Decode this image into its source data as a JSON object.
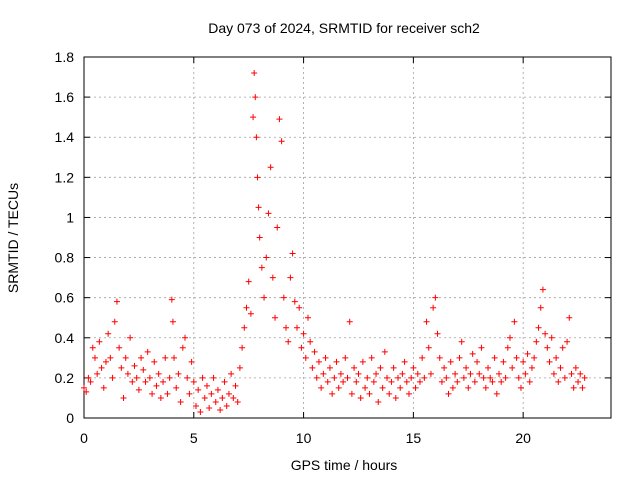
{
  "chart_data": {
    "type": "scatter",
    "title": "Day 073 of 2024, SRMTID for receiver sch2",
    "xlabel": "GPS time / hours",
    "ylabel": "SRMTID / TECUs",
    "xlim": [
      0,
      24
    ],
    "ylim": [
      0,
      1.8
    ],
    "xticks": [
      0,
      5,
      10,
      15,
      20
    ],
    "xtick_labels": [
      "0",
      "5",
      "10",
      "15",
      "20"
    ],
    "yticks": [
      0,
      0.2,
      0.4,
      0.6,
      0.8,
      1.0,
      1.2,
      1.4,
      1.6,
      1.8
    ],
    "ytick_labels": [
      "0",
      "0.2",
      "0.4",
      "0.6",
      "0.8",
      "1",
      "1.2",
      "1.4",
      "1.6",
      "1.8"
    ],
    "grid": true,
    "marker": "plus",
    "color": "#ff0000",
    "series": [
      {
        "name": "SRMTID",
        "points": [
          [
            0.0,
            0.15
          ],
          [
            0.1,
            0.13
          ],
          [
            0.2,
            0.2
          ],
          [
            0.3,
            0.18
          ],
          [
            0.4,
            0.35
          ],
          [
            0.5,
            0.3
          ],
          [
            0.6,
            0.22
          ],
          [
            0.7,
            0.38
          ],
          [
            0.8,
            0.25
          ],
          [
            0.9,
            0.15
          ],
          [
            1.0,
            0.28
          ],
          [
            1.1,
            0.42
          ],
          [
            1.2,
            0.3
          ],
          [
            1.3,
            0.2
          ],
          [
            1.4,
            0.48
          ],
          [
            1.5,
            0.58
          ],
          [
            1.6,
            0.35
          ],
          [
            1.7,
            0.25
          ],
          [
            1.8,
            0.1
          ],
          [
            1.9,
            0.3
          ],
          [
            2.0,
            0.22
          ],
          [
            2.1,
            0.4
          ],
          [
            2.2,
            0.18
          ],
          [
            2.3,
            0.26
          ],
          [
            2.4,
            0.2
          ],
          [
            2.5,
            0.14
          ],
          [
            2.6,
            0.3
          ],
          [
            2.7,
            0.24
          ],
          [
            2.8,
            0.18
          ],
          [
            2.9,
            0.33
          ],
          [
            3.0,
            0.2
          ],
          [
            3.1,
            0.12
          ],
          [
            3.2,
            0.28
          ],
          [
            3.3,
            0.16
          ],
          [
            3.4,
            0.22
          ],
          [
            3.5,
            0.1
          ],
          [
            3.6,
            0.18
          ],
          [
            3.7,
            0.3
          ],
          [
            3.8,
            0.12
          ],
          [
            3.9,
            0.2
          ],
          [
            4.0,
            0.59
          ],
          [
            4.05,
            0.48
          ],
          [
            4.1,
            0.3
          ],
          [
            4.2,
            0.15
          ],
          [
            4.3,
            0.22
          ],
          [
            4.4,
            0.08
          ],
          [
            4.5,
            0.35
          ],
          [
            4.6,
            0.4
          ],
          [
            4.7,
            0.2
          ],
          [
            4.8,
            0.12
          ],
          [
            4.9,
            0.28
          ],
          [
            5.0,
            0.18
          ],
          [
            5.1,
            0.06
          ],
          [
            5.2,
            0.14
          ],
          [
            5.3,
            0.03
          ],
          [
            5.4,
            0.2
          ],
          [
            5.5,
            0.1
          ],
          [
            5.6,
            0.16
          ],
          [
            5.7,
            0.05
          ],
          [
            5.8,
            0.12
          ],
          [
            5.9,
            0.2
          ],
          [
            6.0,
            0.08
          ],
          [
            6.1,
            0.14
          ],
          [
            6.2,
            0.04
          ],
          [
            6.3,
            0.1
          ],
          [
            6.4,
            0.18
          ],
          [
            6.5,
            0.06
          ],
          [
            6.6,
            0.12
          ],
          [
            6.7,
            0.22
          ],
          [
            6.8,
            0.1
          ],
          [
            6.9,
            0.16
          ],
          [
            7.0,
            0.08
          ],
          [
            7.1,
            0.25
          ],
          [
            7.2,
            0.35
          ],
          [
            7.3,
            0.45
          ],
          [
            7.4,
            0.55
          ],
          [
            7.5,
            0.68
          ],
          [
            7.6,
            0.52
          ],
          [
            7.7,
            1.5
          ],
          [
            7.75,
            1.72
          ],
          [
            7.8,
            1.6
          ],
          [
            7.85,
            1.4
          ],
          [
            7.9,
            1.2
          ],
          [
            7.95,
            1.05
          ],
          [
            8.0,
            0.9
          ],
          [
            8.1,
            0.75
          ],
          [
            8.2,
            0.6
          ],
          [
            8.3,
            0.8
          ],
          [
            8.4,
            1.02
          ],
          [
            8.5,
            1.25
          ],
          [
            8.6,
            0.7
          ],
          [
            8.7,
            0.5
          ],
          [
            8.8,
            0.95
          ],
          [
            8.9,
            1.49
          ],
          [
            9.0,
            1.38
          ],
          [
            9.1,
            0.6
          ],
          [
            9.2,
            0.45
          ],
          [
            9.3,
            0.38
          ],
          [
            9.4,
            0.7
          ],
          [
            9.5,
            0.82
          ],
          [
            9.6,
            0.58
          ],
          [
            9.7,
            0.45
          ],
          [
            9.8,
            0.55
          ],
          [
            9.9,
            0.35
          ],
          [
            10.0,
            0.42
          ],
          [
            10.1,
            0.3
          ],
          [
            10.2,
            0.5
          ],
          [
            10.3,
            0.38
          ],
          [
            10.4,
            0.25
          ],
          [
            10.5,
            0.33
          ],
          [
            10.6,
            0.2
          ],
          [
            10.7,
            0.28
          ],
          [
            10.8,
            0.15
          ],
          [
            10.9,
            0.22
          ],
          [
            11.0,
            0.3
          ],
          [
            11.1,
            0.18
          ],
          [
            11.2,
            0.25
          ],
          [
            11.3,
            0.12
          ],
          [
            11.4,
            0.2
          ],
          [
            11.5,
            0.28
          ],
          [
            11.6,
            0.15
          ],
          [
            11.7,
            0.22
          ],
          [
            11.8,
            0.18
          ],
          [
            11.9,
            0.3
          ],
          [
            12.0,
            0.2
          ],
          [
            12.1,
            0.48
          ],
          [
            12.2,
            0.12
          ],
          [
            12.3,
            0.25
          ],
          [
            12.4,
            0.18
          ],
          [
            12.5,
            0.22
          ],
          [
            12.6,
            0.1
          ],
          [
            12.7,
            0.28
          ],
          [
            12.8,
            0.15
          ],
          [
            12.9,
            0.2
          ],
          [
            13.0,
            0.12
          ],
          [
            13.1,
            0.3
          ],
          [
            13.2,
            0.18
          ],
          [
            13.3,
            0.22
          ],
          [
            13.4,
            0.08
          ],
          [
            13.5,
            0.25
          ],
          [
            13.6,
            0.15
          ],
          [
            13.7,
            0.33
          ],
          [
            13.8,
            0.2
          ],
          [
            13.9,
            0.12
          ],
          [
            14.0,
            0.18
          ],
          [
            14.1,
            0.25
          ],
          [
            14.2,
            0.1
          ],
          [
            14.3,
            0.2
          ],
          [
            14.4,
            0.15
          ],
          [
            14.5,
            0.22
          ],
          [
            14.6,
            0.28
          ],
          [
            14.7,
            0.18
          ],
          [
            14.8,
            0.12
          ],
          [
            14.9,
            0.2
          ],
          [
            15.0,
            0.25
          ],
          [
            15.1,
            0.15
          ],
          [
            15.2,
            0.22
          ],
          [
            15.3,
            0.18
          ],
          [
            15.4,
            0.3
          ],
          [
            15.5,
            0.2
          ],
          [
            15.6,
            0.48
          ],
          [
            15.7,
            0.35
          ],
          [
            15.8,
            0.22
          ],
          [
            15.9,
            0.55
          ],
          [
            16.0,
            0.6
          ],
          [
            16.1,
            0.42
          ],
          [
            16.2,
            0.3
          ],
          [
            16.3,
            0.18
          ],
          [
            16.4,
            0.25
          ],
          [
            16.5,
            0.2
          ],
          [
            16.6,
            0.12
          ],
          [
            16.7,
            0.28
          ],
          [
            16.8,
            0.15
          ],
          [
            16.9,
            0.22
          ],
          [
            17.0,
            0.18
          ],
          [
            17.1,
            0.3
          ],
          [
            17.2,
            0.38
          ],
          [
            17.3,
            0.2
          ],
          [
            17.4,
            0.25
          ],
          [
            17.5,
            0.15
          ],
          [
            17.6,
            0.22
          ],
          [
            17.7,
            0.32
          ],
          [
            17.8,
            0.18
          ],
          [
            17.9,
            0.28
          ],
          [
            18.0,
            0.22
          ],
          [
            18.1,
            0.35
          ],
          [
            18.2,
            0.2
          ],
          [
            18.3,
            0.15
          ],
          [
            18.4,
            0.25
          ],
          [
            18.5,
            0.2
          ],
          [
            18.6,
            0.18
          ],
          [
            18.7,
            0.3
          ],
          [
            18.8,
            0.12
          ],
          [
            18.9,
            0.22
          ],
          [
            19.0,
            0.18
          ],
          [
            19.1,
            0.28
          ],
          [
            19.2,
            0.2
          ],
          [
            19.3,
            0.35
          ],
          [
            19.4,
            0.4
          ],
          [
            19.5,
            0.25
          ],
          [
            19.6,
            0.48
          ],
          [
            19.7,
            0.3
          ],
          [
            19.8,
            0.2
          ],
          [
            19.9,
            0.15
          ],
          [
            20.0,
            0.28
          ],
          [
            20.1,
            0.22
          ],
          [
            20.2,
            0.32
          ],
          [
            20.3,
            0.18
          ],
          [
            20.4,
            0.25
          ],
          [
            20.5,
            0.3
          ],
          [
            20.6,
            0.38
          ],
          [
            20.7,
            0.45
          ],
          [
            20.8,
            0.55
          ],
          [
            20.9,
            0.64
          ],
          [
            21.0,
            0.42
          ],
          [
            21.1,
            0.35
          ],
          [
            21.2,
            0.28
          ],
          [
            21.3,
            0.4
          ],
          [
            21.4,
            0.22
          ],
          [
            21.5,
            0.3
          ],
          [
            21.6,
            0.18
          ],
          [
            21.7,
            0.25
          ],
          [
            21.8,
            0.35
          ],
          [
            21.9,
            0.2
          ],
          [
            22.0,
            0.38
          ],
          [
            22.1,
            0.5
          ],
          [
            22.2,
            0.22
          ],
          [
            22.3,
            0.15
          ],
          [
            22.4,
            0.25
          ],
          [
            22.5,
            0.18
          ],
          [
            22.6,
            0.22
          ],
          [
            22.7,
            0.15
          ],
          [
            22.8,
            0.2
          ]
        ]
      }
    ]
  }
}
